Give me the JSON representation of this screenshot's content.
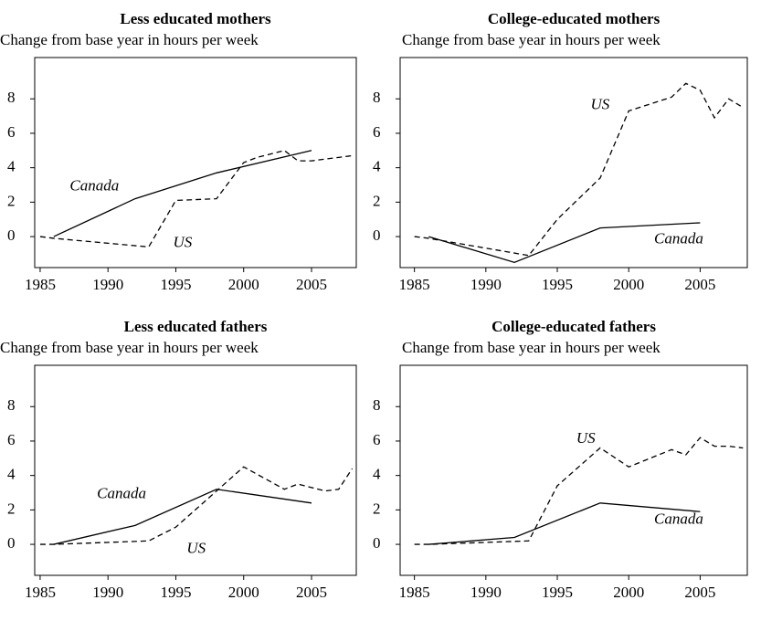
{
  "chart_data": [
    {
      "type": "line",
      "title": "Less educated mothers",
      "subtitle": "Change from base year in hours per week",
      "xlim": [
        1984.6,
        2008.3
      ],
      "xticks": [
        1985,
        1990,
        1995,
        2000,
        2005
      ],
      "ylim": [
        -1.8,
        10.4
      ],
      "yticks": [
        0,
        2,
        4,
        6,
        8
      ],
      "series": [
        {
          "name": "Canada",
          "color": "#000",
          "x": [
            1986,
            1992,
            1998,
            2005
          ],
          "values": [
            0,
            2.2,
            3.7,
            5.0
          ]
        },
        {
          "name": "US",
          "color": "#000",
          "dashed": true,
          "x": [
            1985,
            1986,
            1993,
            1995,
            1998,
            2000,
            2001,
            2003,
            2004,
            2005,
            2007,
            2008
          ],
          "values": [
            0,
            -0.1,
            -0.6,
            2.1,
            2.2,
            4.3,
            4.6,
            5.0,
            4.4,
            4.4,
            4.6,
            4.7
          ]
        }
      ]
    },
    {
      "type": "line",
      "title": "College-educated mothers",
      "subtitle": "Change from base year in hours per week",
      "xlim": [
        1984.0,
        2008.3
      ],
      "xticks": [
        1985,
        1990,
        1995,
        2000,
        2005
      ],
      "ylim": [
        -1.8,
        10.4
      ],
      "yticks": [
        0,
        2,
        4,
        6,
        8
      ],
      "series": [
        {
          "name": "Canada",
          "color": "#000",
          "x": [
            1986,
            1992,
            1998,
            2005
          ],
          "values": [
            0,
            -1.5,
            0.5,
            0.8
          ]
        },
        {
          "name": "US",
          "color": "#000",
          "dashed": true,
          "x": [
            1985,
            1986,
            1993,
            1995,
            1998,
            2000,
            2003,
            2004,
            2005,
            2006,
            2007,
            2008
          ],
          "values": [
            0,
            -0.1,
            -1.1,
            1.0,
            3.4,
            7.3,
            8.1,
            8.9,
            8.5,
            6.9,
            8.0,
            7.5
          ]
        }
      ]
    },
    {
      "type": "line",
      "title": "Less educated fathers",
      "subtitle": "Change from base year in hours per week",
      "xlim": [
        1984.6,
        2008.3
      ],
      "xticks": [
        1985,
        1990,
        1995,
        2000,
        2005
      ],
      "ylim": [
        -1.8,
        10.4
      ],
      "yticks": [
        0,
        2,
        4,
        6,
        8
      ],
      "series": [
        {
          "name": "Canada",
          "color": "#000",
          "x": [
            1986,
            1992,
            1998,
            2005
          ],
          "values": [
            0,
            1.1,
            3.2,
            2.4
          ]
        },
        {
          "name": "US",
          "color": "#000",
          "dashed": true,
          "x": [
            1985,
            1986,
            1993,
            1995,
            1998,
            2000,
            2003,
            2004,
            2005,
            2006,
            2007,
            2008
          ],
          "values": [
            0,
            0,
            0.2,
            1.0,
            3.1,
            4.5,
            3.2,
            3.5,
            3.3,
            3.1,
            3.2,
            4.4
          ]
        }
      ]
    },
    {
      "type": "line",
      "title": "College-educated fathers",
      "subtitle": "Change from base year in hours per week",
      "xlim": [
        1984.0,
        2008.3
      ],
      "xticks": [
        1985,
        1990,
        1995,
        2000,
        2005
      ],
      "ylim": [
        -1.8,
        10.4
      ],
      "yticks": [
        0,
        2,
        4,
        6,
        8
      ],
      "series": [
        {
          "name": "Canada",
          "color": "#000",
          "x": [
            1986,
            1992,
            1998,
            2005
          ],
          "values": [
            0,
            0.4,
            2.4,
            1.9
          ]
        },
        {
          "name": "US",
          "color": "#000",
          "dashed": true,
          "x": [
            1985,
            1986,
            1993,
            1995,
            1998,
            2000,
            2003,
            2004,
            2005,
            2006,
            2007,
            2008
          ],
          "values": [
            0,
            0,
            0.2,
            3.4,
            5.6,
            4.5,
            5.5,
            5.2,
            6.2,
            5.7,
            5.7,
            5.6
          ]
        }
      ]
    }
  ]
}
